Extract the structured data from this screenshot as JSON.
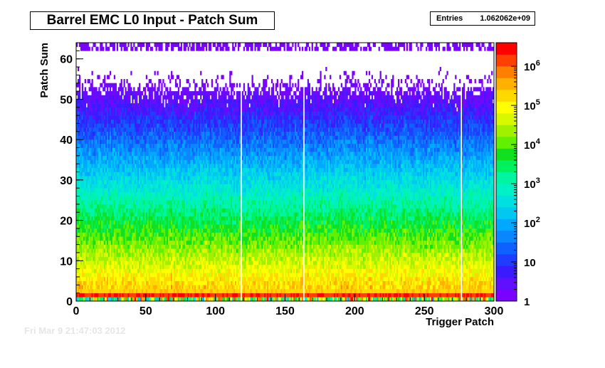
{
  "chart_data": {
    "type": "heatmap",
    "title": "Barrel EMC L0 Input - Patch Sum",
    "stats": {
      "label": "Entries",
      "value": "1.062062e+09"
    },
    "xlabel": "Trigger Patch",
    "ylabel": "Patch Sum",
    "xlim": [
      0,
      300
    ],
    "ylim": [
      0,
      64
    ],
    "x_ticks": [
      "0",
      "50",
      "100",
      "150",
      "200",
      "250",
      "300"
    ],
    "y_ticks": [
      "0",
      "10",
      "20",
      "30",
      "40",
      "50",
      "60"
    ],
    "z_scale": "log",
    "zlim": [
      1,
      4000000
    ],
    "z_ticks": [
      {
        "value": 1,
        "label": "1"
      },
      {
        "value": 10,
        "label": "10"
      },
      {
        "value": 100,
        "label": "10",
        "exp": "2"
      },
      {
        "value": 1000,
        "label": "10",
        "exp": "3"
      },
      {
        "value": 10000,
        "label": "10",
        "exp": "4"
      },
      {
        "value": 100000,
        "label": "10",
        "exp": "5"
      },
      {
        "value": 1000000,
        "label": "10",
        "exp": "6"
      }
    ],
    "empty_trigger_patches": [
      118,
      163,
      276
    ],
    "palette": [
      "#7a00ff",
      "#6010ff",
      "#3a1aff",
      "#1f3cff",
      "#1060ff",
      "#0a86ff",
      "#00a8ff",
      "#00c8f0",
      "#00e0e0",
      "#00f0c8",
      "#00f5a0",
      "#00f060",
      "#10e020",
      "#60f000",
      "#a0f000",
      "#d8f800",
      "#ffff00",
      "#ffd800",
      "#ffb000",
      "#ff8000",
      "#ff4000",
      "#ff0000"
    ]
  },
  "footer": {
    "date": "Fri Mar  9 21:47:03 2012"
  }
}
